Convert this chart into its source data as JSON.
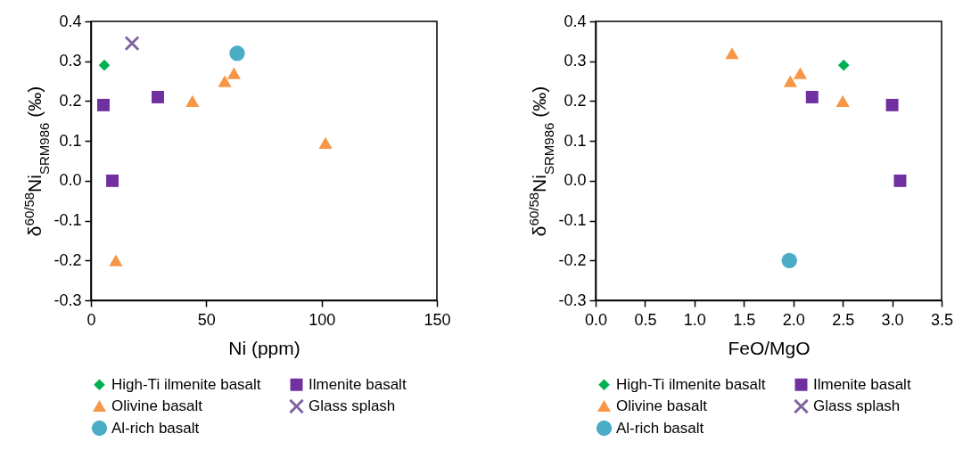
{
  "chart_data": [
    {
      "type": "scatter",
      "xlabel": "Ni (ppm)",
      "ylabel": "δ$^{60/58}$Ni$_{SRM986}$ (‰)",
      "xlim": [
        0,
        150
      ],
      "xticks": [
        0,
        50,
        100,
        150
      ],
      "ylim": [
        -0.3,
        0.4
      ],
      "yticks": [
        -0.3,
        -0.2,
        -0.1,
        {
          "value": 0,
          "label": "0.0"
        },
        0.1,
        0.2,
        0.3,
        0.4
      ],
      "grid": false,
      "legend": "bottom",
      "series": [
        {
          "name": "High-Ti ilmenite basalt",
          "color": "#00b050",
          "marker": "diamond",
          "x": [
            5.8
          ],
          "values": [
            0.29
          ]
        },
        {
          "name": "Ilmenite basalt",
          "color": "#7030a0",
          "marker": "square",
          "x": [
            5.4,
            29,
            9.3
          ],
          "values": [
            0.19,
            0.21,
            0.0
          ]
        },
        {
          "name": "Olivine basalt",
          "color": "#f79646",
          "marker": "triangle",
          "x": [
            58,
            62,
            44,
            101.7,
            10.8
          ],
          "values": [
            0.25,
            0.27,
            0.2,
            0.095,
            -0.2
          ]
        },
        {
          "name": "Glass splash",
          "color": "#8064a2",
          "marker": "cross",
          "x": [
            17.8
          ],
          "values": [
            0.345
          ]
        },
        {
          "name": "Al-rich basalt",
          "color": "#4bacc6",
          "marker": "circle",
          "x": [
            63.4
          ],
          "values": [
            0.32
          ]
        }
      ]
    },
    {
      "type": "scatter",
      "xlabel": "FeO/MgO",
      "ylabel": "δ$^{60/58}$Ni$_{SRM986}$ (‰)",
      "xlim": [
        0,
        3.5
      ],
      "xticks": [
        {
          "value": 0,
          "label": "0.0"
        },
        0.5,
        {
          "value": 1,
          "label": "1.0"
        },
        1.5,
        {
          "value": 2,
          "label": "2.0"
        },
        2.5,
        {
          "value": 3,
          "label": "3.0"
        },
        3.5
      ],
      "ylim": [
        -0.3,
        0.4
      ],
      "yticks": [
        -0.3,
        -0.2,
        -0.1,
        {
          "value": 0,
          "label": "0.0"
        },
        0.1,
        0.2,
        0.3,
        0.4
      ],
      "grid": false,
      "legend": "bottom",
      "series": [
        {
          "name": "High-Ti ilmenite basalt",
          "color": "#00b050",
          "marker": "diamond",
          "x": [
            2.51
          ],
          "values": [
            0.29
          ]
        },
        {
          "name": "Ilmenite basalt",
          "color": "#7030a0",
          "marker": "square",
          "x": [
            2.19,
            3.0,
            3.08
          ],
          "values": [
            0.21,
            0.19,
            0.0
          ]
        },
        {
          "name": "Olivine basalt",
          "color": "#f79646",
          "marker": "triangle",
          "x": [
            1.38,
            1.97,
            2.07,
            2.5
          ],
          "values": [
            0.32,
            0.25,
            0.27,
            0.2
          ]
        },
        {
          "name": "Glass splash",
          "color": "#8064a2",
          "marker": "cross"
        },
        {
          "name": "Al-rich basalt",
          "color": "#4bacc6",
          "marker": "circle",
          "x": [
            1.96
          ],
          "values": [
            -0.2
          ]
        }
      ]
    }
  ]
}
